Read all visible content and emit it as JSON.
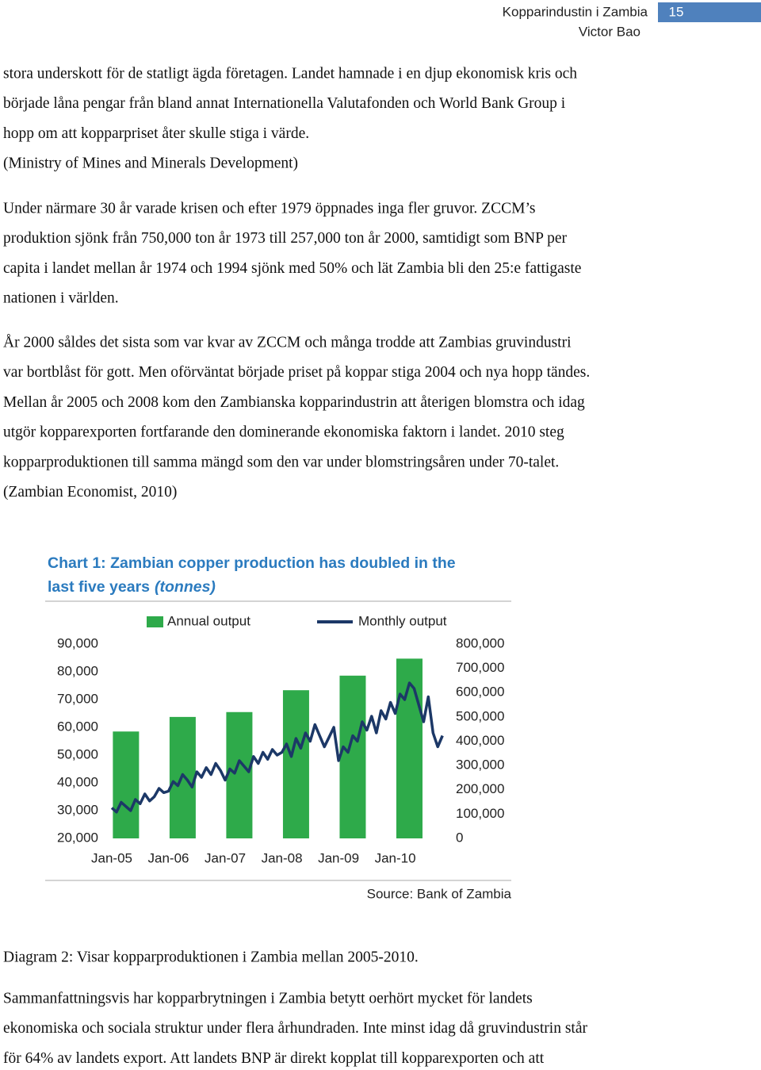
{
  "header": {
    "title": "Kopparindustin i Zambia",
    "author": "Victor Bao",
    "page": "15"
  },
  "paragraphs": [
    [
      "stora underskott för de statligt ägda företagen. Landet hamnade i en djup ekonomisk kris och",
      "började låna pengar från bland annat Internationella Valutafonden och World Bank Group i",
      "hopp om att kopparpriset åter skulle stiga i värde.",
      "(Ministry of Mines and Minerals Development)"
    ],
    [
      "Under närmare 30 år varade krisen och efter 1979 öppnades inga fler gruvor. ZCCM’s",
      "produktion sjönk från 750,000 ton år 1973 till 257,000 ton år 2000, samtidigt som BNP per",
      "capita i landet mellan år 1974 och 1994 sjönk med 50% och lät Zambia bli den 25:e fattigaste",
      "nationen i världen."
    ],
    [
      "År 2000 såldes det sista som var kvar av ZCCM och många trodde att Zambias gruvindustri",
      "var bortblåst för gott. Men oförväntat började priset på koppar stiga 2004 och nya hopp tändes.",
      "Mellan år 2005 och 2008 kom den Zambianska kopparindustrin att återigen blomstra och idag",
      "utgör kopparexporten fortfarande den dominerande ekonomiska faktorn i landet. 2010 steg",
      "kopparproduktionen till samma mängd som den var under blomstringsåren under 70-talet.",
      "(Zambian Economist, 2010)"
    ]
  ],
  "chart_data": {
    "type": "combo",
    "title": [
      "Chart 1: Zambian copper production has doubled in the",
      "last five years"
    ],
    "unit": "(tonnes)",
    "source": "Source: Bank of Zambia",
    "categories": [
      "Jan-05",
      null,
      null,
      null,
      null,
      null,
      null,
      null,
      null,
      null,
      null,
      null,
      "Jan-06",
      null,
      null,
      null,
      null,
      null,
      null,
      null,
      null,
      null,
      null,
      null,
      "Jan-07",
      null,
      null,
      null,
      null,
      null,
      null,
      null,
      null,
      null,
      null,
      null,
      "Jan-08",
      null,
      null,
      null,
      null,
      null,
      null,
      null,
      null,
      null,
      null,
      null,
      "Jan-09",
      null,
      null,
      null,
      null,
      null,
      null,
      null,
      null,
      null,
      null,
      null,
      "Jan-10",
      null,
      null,
      null,
      null,
      null,
      null,
      null,
      null,
      null,
      null
    ],
    "series": [
      {
        "name": "Annual output",
        "type": "bar",
        "axis": "y2",
        "color": "#2eaa4a",
        "values": [
          null,
          null,
          null,
          440000,
          null,
          null,
          null,
          null,
          null,
          null,
          null,
          null,
          null,
          null,
          null,
          500000,
          null,
          null,
          null,
          null,
          null,
          null,
          null,
          null,
          null,
          null,
          null,
          520000,
          null,
          null,
          null,
          null,
          null,
          null,
          null,
          null,
          null,
          null,
          null,
          610000,
          null,
          null,
          null,
          null,
          null,
          null,
          null,
          null,
          null,
          null,
          null,
          670000,
          null,
          null,
          null,
          null,
          null,
          null,
          null,
          null,
          null,
          null,
          null,
          740000,
          null,
          null,
          null,
          null,
          null,
          null,
          null
        ]
      },
      {
        "name": "Monthly output",
        "type": "line",
        "color": "#1c3867",
        "values": [
          31000,
          29500,
          33000,
          31500,
          30000,
          34000,
          32500,
          36000,
          33500,
          35000,
          38000,
          36500,
          37000,
          40500,
          39000,
          43000,
          41000,
          38500,
          44000,
          42000,
          45500,
          43000,
          47000,
          44500,
          41000,
          45000,
          43500,
          48000,
          46000,
          44000,
          49500,
          47000,
          51000,
          48500,
          52000,
          50000,
          51000,
          54000,
          49500,
          56000,
          52500,
          58000,
          55000,
          61000,
          57000,
          53000,
          56500,
          60000,
          48000,
          53000,
          51000,
          57000,
          55000,
          62000,
          59000,
          64000,
          58000,
          66000,
          63000,
          69000,
          65000,
          72000,
          70000,
          76000,
          74000,
          68000,
          62000,
          71000,
          58000,
          53000,
          57000
        ]
      }
    ],
    "ylim": [
      20000,
      90000
    ],
    "yticks": [
      {
        "value": 20000,
        "label": "20,000"
      },
      {
        "value": 30000,
        "label": "30,000"
      },
      {
        "value": 40000,
        "label": "40,000"
      },
      {
        "value": 50000,
        "label": "50,000"
      },
      {
        "value": 60000,
        "label": "60,000"
      },
      {
        "value": 70000,
        "label": "70,000"
      },
      {
        "value": 80000,
        "label": "80,000"
      },
      {
        "value": 90000,
        "label": "90,000"
      }
    ],
    "y2lim": [
      0,
      800000
    ],
    "y2ticks": [
      0,
      {
        "value": 100000,
        "label": "100,000"
      },
      {
        "value": 200000,
        "label": "200,000"
      },
      {
        "value": 300000,
        "label": "300,000"
      },
      {
        "value": 400000,
        "label": "400,000"
      },
      {
        "value": 500000,
        "label": "500,000"
      },
      {
        "value": 600000,
        "label": "600,000"
      },
      {
        "value": 700000,
        "label": "700,000"
      },
      {
        "value": 800000,
        "label": "800,000"
      }
    ],
    "grid": false
  },
  "caption": "Diagram 2: Visar kopparproduktionen i Zambia mellan 2005-2010.",
  "closing": [
    "Sammanfattningsvis har kopparbrytningen i Zambia betytt oerhört mycket för landets",
    "ekonomiska och sociala struktur under flera århundraden. Inte minst idag då gruvindustrin står",
    "för 64% av landets export. Att landets BNP är direkt kopplat till kopparexporten och att"
  ]
}
